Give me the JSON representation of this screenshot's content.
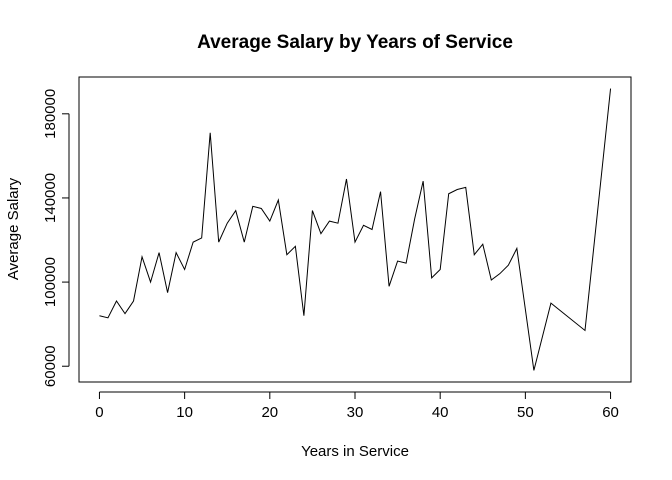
{
  "chart_data": {
    "type": "line",
    "title": "Average Salary by Years of Service",
    "xlabel": "Years in Service",
    "ylabel": "Average Salary",
    "xlim": [
      -2.4,
      62.4
    ],
    "ylim": [
      52500,
      197500
    ],
    "xticks": [
      0,
      10,
      20,
      30,
      40,
      50,
      60
    ],
    "yticks": [
      60000,
      100000,
      140000,
      180000
    ],
    "line_color": "#000000",
    "grid": false,
    "x": [
      0,
      1,
      2,
      3,
      4,
      5,
      6,
      7,
      8,
      9,
      10,
      11,
      12,
      13,
      14,
      15,
      16,
      17,
      18,
      19,
      20,
      21,
      22,
      23,
      24,
      25,
      26,
      27,
      28,
      29,
      30,
      31,
      32,
      33,
      34,
      35,
      36,
      37,
      38,
      39,
      40,
      41,
      42,
      43,
      44,
      45,
      46,
      47,
      48,
      49,
      51,
      53,
      57,
      60
    ],
    "y": [
      84000,
      83000,
      91000,
      85000,
      91000,
      112000,
      100000,
      114000,
      95000,
      114000,
      106000,
      119000,
      121000,
      171000,
      119000,
      128000,
      134000,
      119000,
      136000,
      135000,
      129000,
      139000,
      113000,
      117000,
      84000,
      134000,
      123000,
      129000,
      128000,
      149000,
      119000,
      127000,
      125000,
      143000,
      98000,
      110000,
      109000,
      130000,
      148000,
      102000,
      106000,
      142000,
      144000,
      145000,
      113000,
      118000,
      101000,
      104000,
      108000,
      116000,
      58000,
      90000,
      77000,
      192000
    ]
  }
}
